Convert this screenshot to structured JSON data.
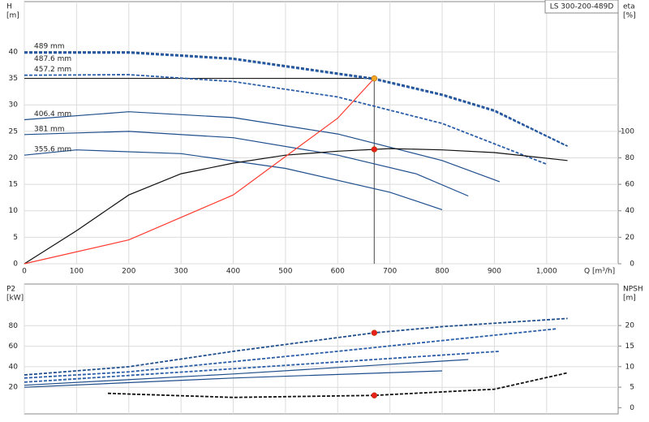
{
  "chart_data": [
    {
      "type": "line",
      "title": "LS 300-200-489D",
      "x_label": "Q [m³/h]",
      "y_label": [
        "H",
        "[m]"
      ],
      "y2_label": [
        "eta",
        "[%]"
      ],
      "xlim": [
        0,
        1137
      ],
      "ylim": [
        0,
        49.5
      ],
      "y2lim": [
        0,
        198
      ],
      "grid": true,
      "xticks": [
        0,
        100,
        200,
        300,
        400,
        500,
        600,
        700,
        800,
        900,
        {
          "value": 1000,
          "label": "1,000"
        }
      ],
      "yticks": [
        0,
        5,
        10,
        15,
        20,
        25,
        30,
        35,
        40
      ],
      "y2ticks": [
        0,
        20,
        40,
        60,
        80,
        100
      ],
      "series": [
        {
          "name": "489 mm",
          "color": "#1f4e8c",
          "dashed": true,
          "x": [
            0,
            200,
            400,
            670,
            800,
            900,
            1040
          ],
          "values": [
            40,
            40,
            38.8,
            35,
            32,
            29,
            22.2
          ]
        },
        {
          "name": "487.6 mm",
          "color": "#2a5ea8",
          "dashed": true,
          "x": [
            0,
            200,
            400,
            670,
            800,
            900,
            1035
          ],
          "values": [
            39.8,
            39.8,
            38.6,
            34.8,
            31.8,
            28.8,
            22.4
          ]
        },
        {
          "name": "457.2 mm",
          "color": "#2a5ea8",
          "dashed": true,
          "x": [
            0,
            200,
            400,
            600,
            800,
            1000
          ],
          "values": [
            35.6,
            35.7,
            34.4,
            31.5,
            26.5,
            18.8
          ]
        },
        {
          "name": "406.4 mm",
          "color": "#1f4e8c",
          "dashed": false,
          "x": [
            0,
            200,
            400,
            600,
            800,
            910
          ],
          "values": [
            27.2,
            28.7,
            27.6,
            24.5,
            19.5,
            15.5
          ]
        },
        {
          "name": "381 mm",
          "color": "#1f4e8c",
          "dashed": false,
          "x": [
            0,
            200,
            400,
            600,
            750,
            850
          ],
          "values": [
            24.4,
            25,
            23.8,
            20.5,
            17,
            12.8
          ]
        },
        {
          "name": "355.6 mm",
          "color": "#1f4e8c",
          "dashed": false,
          "x": [
            0,
            100,
            300,
            500,
            700,
            800
          ],
          "values": [
            20.5,
            21.5,
            20.8,
            18,
            13.5,
            10.2
          ]
        },
        {
          "color": "#111111",
          "dashed": false,
          "axis": "y2",
          "x": [
            0,
            100,
            200,
            300,
            400,
            500,
            600,
            700,
            800,
            900,
            1040
          ],
          "values": [
            0,
            25,
            52,
            68,
            76,
            82,
            85,
            87,
            86,
            84,
            78
          ]
        },
        {
          "color": "#ff3b30",
          "dashed": false,
          "x": [
            0,
            200,
            400,
            600,
            670
          ],
          "values": [
            0,
            4.5,
            13,
            27.5,
            35
          ]
        }
      ],
      "points": [
        {
          "color": "#f5a623",
          "x": 670,
          "y": 35
        },
        {
          "color": "#e8201c",
          "x": 670,
          "y": 21.6
        }
      ]
    },
    {
      "type": "line",
      "y_label": [
        "P2",
        "[kW]"
      ],
      "y2_label": [
        "NPSH",
        "[m]"
      ],
      "xlim": [
        0,
        1137
      ],
      "ylim": [
        -5.9,
        120.5
      ],
      "y2lim": [
        -1.5,
        30.1
      ],
      "grid": true,
      "xticks": [
        0,
        100,
        200,
        300,
        400,
        500,
        600,
        700,
        800,
        900,
        1000
      ],
      "yticks": [
        20,
        40,
        60,
        80
      ],
      "y2ticks": [
        0,
        5,
        10,
        15,
        20
      ],
      "series": [
        {
          "color": "#1f4e8c",
          "dashed": true,
          "x": [
            0,
            200,
            400,
            670,
            800,
            1040
          ],
          "values": [
            32,
            40,
            55,
            73,
            79,
            87
          ]
        },
        {
          "color": "#2a5ea8",
          "dashed": true,
          "x": [
            0,
            200,
            400,
            600,
            1020
          ],
          "values": [
            29,
            35,
            45,
            55,
            77
          ]
        },
        {
          "color": "#2a5ea8",
          "dashed": true,
          "x": [
            0,
            400,
            910
          ],
          "values": [
            25,
            38,
            55
          ]
        },
        {
          "color": "#1f4e8c",
          "dashed": false,
          "x": [
            0,
            400,
            850
          ],
          "values": [
            22,
            33,
            47
          ]
        },
        {
          "color": "#1f4e8c",
          "dashed": false,
          "x": [
            0,
            400,
            800
          ],
          "values": [
            20,
            29,
            36
          ]
        },
        {
          "color": "#111111",
          "dashed": true,
          "axis": "y2",
          "x": [
            160,
            400,
            670,
            900,
            1040
          ],
          "values": [
            3.5,
            2.5,
            3,
            4.5,
            8.5
          ]
        }
      ],
      "points": [
        {
          "color": "#e8201c",
          "x": 670,
          "y": 73
        },
        {
          "color": "#e8201c",
          "x": 670,
          "y": 3,
          "axis": "y2"
        }
      ]
    }
  ]
}
